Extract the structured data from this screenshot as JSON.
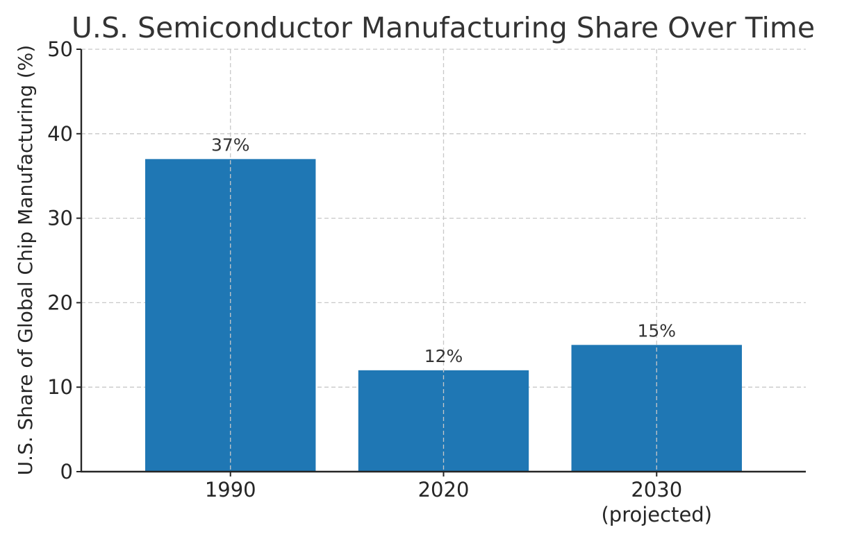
{
  "chart_data": {
    "type": "bar",
    "title": "U.S. Semiconductor Manufacturing Share Over Time",
    "xlabel": "",
    "ylabel": "U.S. Share of Global Chip Manufacturing (%)",
    "categories": [
      [
        "1990"
      ],
      [
        "2020"
      ],
      [
        "2030",
        "(projected)"
      ]
    ],
    "values": [
      37,
      12,
      15
    ],
    "data_labels": [
      "37%",
      "12%",
      "15%"
    ],
    "ylim": [
      0,
      50
    ],
    "yticks": [
      0,
      10,
      20,
      30,
      40,
      50
    ],
    "grid": true,
    "bar_color": "#1f77b4"
  }
}
